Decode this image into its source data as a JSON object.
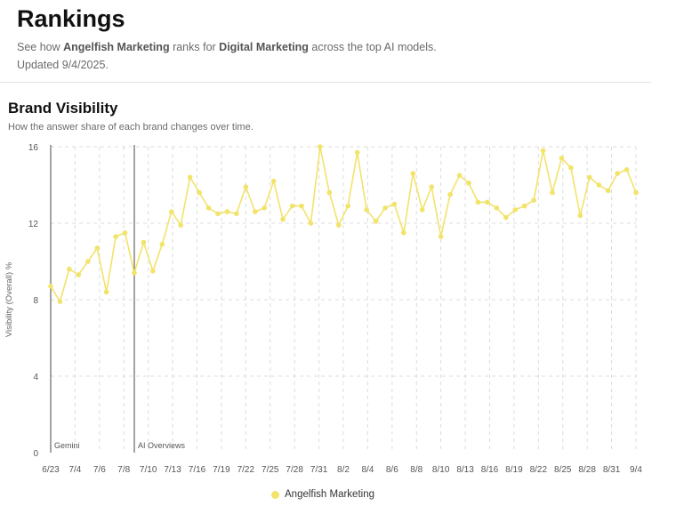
{
  "header": {
    "title": "Rankings",
    "sub_prefix": "See how ",
    "brand": "Angelfish Marketing",
    "sub_middle": " ranks for ",
    "topic": "Digital Marketing",
    "sub_suffix": " across the top AI models.",
    "updated": "Updated 9/4/2025."
  },
  "section": {
    "title": "Brand Visibility",
    "subtitle": "How the answer share of each brand changes over time."
  },
  "colors": {
    "series": "#f2e36b",
    "grid": "#dcdcdc",
    "annotation_line": "#666666"
  },
  "chart_data": {
    "type": "line",
    "ylabel": "Visibility (Overall) %",
    "xlabel": "",
    "ylim": [
      0,
      16
    ],
    "yticks": [
      0,
      4,
      8,
      12,
      16
    ],
    "grid": true,
    "legend_position": "bottom-center",
    "x_tick_labels": [
      "6/23",
      "7/4",
      "7/6",
      "7/8",
      "7/10",
      "7/13",
      "7/16",
      "7/19",
      "7/22",
      "7/25",
      "7/28",
      "7/31",
      "8/2",
      "8/4",
      "8/6",
      "8/8",
      "8/10",
      "8/13",
      "8/16",
      "8/19",
      "8/22",
      "8/25",
      "8/28",
      "8/31",
      "9/4"
    ],
    "annotations": [
      {
        "label": "Gemini",
        "at_index": 0
      },
      {
        "label": "AI Overviews",
        "at_index": 9
      }
    ],
    "series": [
      {
        "name": "Angelfish Marketing",
        "values": [
          8.7,
          7.9,
          9.6,
          9.3,
          10.0,
          10.7,
          8.4,
          11.3,
          11.5,
          9.4,
          11.0,
          9.5,
          10.9,
          12.6,
          11.9,
          14.4,
          13.6,
          12.8,
          12.5,
          12.6,
          12.5,
          13.9,
          12.6,
          12.8,
          14.2,
          12.2,
          12.9,
          12.9,
          12.0,
          16.0,
          13.6,
          11.9,
          12.9,
          15.7,
          12.7,
          12.1,
          12.8,
          13.0,
          11.5,
          14.6,
          12.7,
          13.9,
          11.3,
          13.5,
          14.5,
          14.1,
          13.1,
          13.1,
          12.8,
          12.3,
          12.7,
          12.9,
          13.2,
          15.8,
          13.6,
          15.4,
          14.9,
          12.4,
          14.4,
          14.0,
          13.7,
          14.6,
          14.8,
          13.6
        ]
      }
    ]
  }
}
